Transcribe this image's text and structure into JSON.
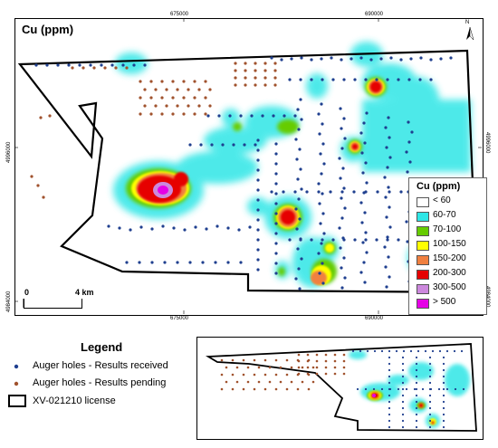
{
  "map_title": "Cu (ppm)",
  "easting_labels": [
    "675000",
    "690000"
  ],
  "northing_labels": [
    "4996000",
    "4984000"
  ],
  "north_label": "N",
  "scale": {
    "start": "0",
    "end": "4 km"
  },
  "cu_legend": {
    "title": "Cu (ppm)",
    "classes": [
      {
        "label": "< 60",
        "color": "#ffffff"
      },
      {
        "label": "60-70",
        "color": "#2ee6e6"
      },
      {
        "label": "70-100",
        "color": "#66cc00"
      },
      {
        "label": "100-150",
        "color": "#ffff00"
      },
      {
        "label": "150-200",
        "color": "#f08040"
      },
      {
        "label": "200-300",
        "color": "#e60000"
      },
      {
        "label": "300-500",
        "color": "#cc88dd"
      },
      {
        "label": "> 500",
        "color": "#e600e6"
      }
    ]
  },
  "legend": {
    "title": "Legend",
    "items": [
      {
        "label": "Auger holes - Results received",
        "color": "#1f3f8f"
      },
      {
        "label": "Auger holes - Results pending",
        "color": "#a0522d"
      },
      {
        "label": "XV-021210 license"
      }
    ]
  }
}
